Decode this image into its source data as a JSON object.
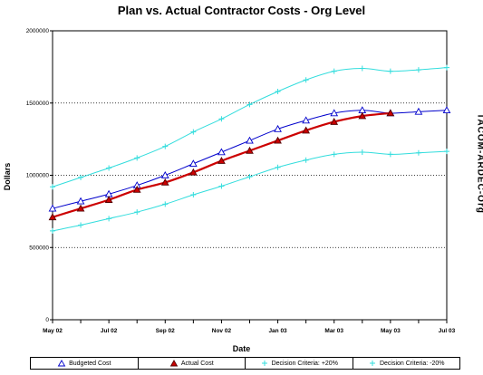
{
  "chart_data": {
    "type": "line",
    "title": "Plan vs. Actual Contractor Costs - Org Level",
    "xlabel": "Date",
    "ylabel": "Dollars",
    "side_label": "TACOM-ARDEC-Org",
    "ylim": [
      0,
      2000000
    ],
    "yticks": [
      "0",
      "500000",
      "1000000",
      "1500000",
      "2000000"
    ],
    "ytick_values": [
      0,
      500000,
      1000000,
      1500000,
      2000000
    ],
    "xticks": [
      "May 02",
      "Jul 02",
      "Sep 02",
      "Nov 02",
      "Jan 03",
      "Mar 03",
      "May 03",
      "Jul 03"
    ],
    "x_months": [
      "May 02",
      "Jun 02",
      "Jul 02",
      "Aug 02",
      "Sep 02",
      "Oct 02",
      "Nov 02",
      "Dec 02",
      "Jan 03",
      "Feb 03",
      "Mar 03",
      "Apr 03",
      "May 03",
      "Jun 03",
      "Jul 03"
    ],
    "grid": true,
    "legend_position": "bottom",
    "series": [
      {
        "name": "Budgeted Cost",
        "color": "#0000cc",
        "marker": "open-triangle",
        "values": [
          770000,
          820000,
          870000,
          930000,
          1000000,
          1080000,
          1160000,
          1240000,
          1320000,
          1380000,
          1430000,
          1450000,
          1430000,
          1440000,
          1450000
        ]
      },
      {
        "name": "Actual Cost",
        "color": "#cc0000",
        "marker": "filled-triangle",
        "values": [
          710000,
          770000,
          830000,
          900000,
          950000,
          1020000,
          1100000,
          1170000,
          1240000,
          1310000,
          1370000,
          1410000,
          1430000,
          null,
          null
        ]
      },
      {
        "name": "Decision Criteria: +20%",
        "color": "#33dddd",
        "marker": "plus",
        "values": [
          920000,
          985000,
          1050000,
          1120000,
          1200000,
          1300000,
          1390000,
          1490000,
          1580000,
          1660000,
          1720000,
          1740000,
          1720000,
          1730000,
          1745000
        ]
      },
      {
        "name": "Decision Criteria: -20%",
        "color": "#33dddd",
        "marker": "plus",
        "values": [
          615000,
          655000,
          700000,
          745000,
          800000,
          865000,
          925000,
          990000,
          1055000,
          1105000,
          1145000,
          1160000,
          1145000,
          1155000,
          1165000
        ]
      }
    ]
  }
}
